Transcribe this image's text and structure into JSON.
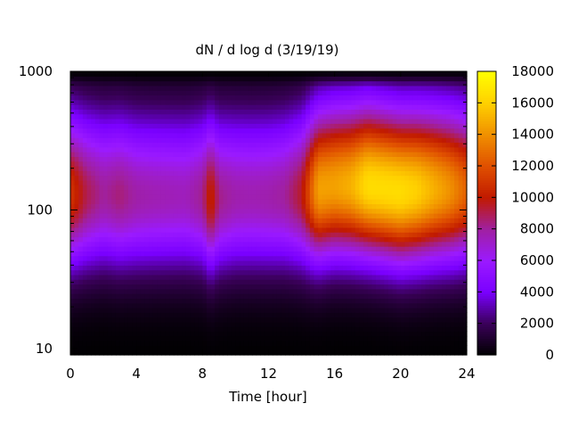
{
  "chart_data": {
    "type": "heatmap",
    "title": "dN / d log d (3/19/19)",
    "xlabel": "Time [hour]",
    "ylabel": "",
    "x_range": [
      0,
      24
    ],
    "y_range": [
      9,
      1000
    ],
    "y_scale": "log",
    "x_ticks": [
      0,
      4,
      8,
      12,
      16,
      20,
      24
    ],
    "x_tick_labels": [
      "0",
      "4",
      "8",
      "12",
      "16",
      "20",
      "24"
    ],
    "y_ticks": [
      10,
      100,
      1000
    ],
    "y_tick_labels": [
      "10",
      "100",
      "1000"
    ],
    "colorbar": {
      "min": 0,
      "max": 18000,
      "ticks": [
        0,
        2000,
        4000,
        6000,
        8000,
        10000,
        12000,
        14000,
        16000,
        18000
      ],
      "tick_labels": [
        "0",
        "2000",
        "4000",
        "6000",
        "8000",
        "10000",
        "12000",
        "14000",
        "16000",
        "18000"
      ],
      "palette": [
        "#000000",
        "#3a0059",
        "#7a00ff",
        "#9b1aff",
        "#a020a0",
        "#c11a00",
        "#e05000",
        "#f09000",
        "#ffd000",
        "#ffff00"
      ]
    },
    "mode_diameter_by_hour": [
      [
        0,
        130
      ],
      [
        2,
        130
      ],
      [
        4,
        125
      ],
      [
        6,
        125
      ],
      [
        8,
        125
      ],
      [
        8.5,
        120
      ],
      [
        10,
        125
      ],
      [
        12,
        125
      ],
      [
        14,
        130
      ],
      [
        15,
        140
      ],
      [
        16,
        150
      ],
      [
        18,
        150
      ],
      [
        20,
        135
      ],
      [
        22,
        140
      ],
      [
        24,
        140
      ]
    ],
    "peak_value_by_hour": [
      [
        0,
        11000
      ],
      [
        1,
        9000
      ],
      [
        2,
        8000
      ],
      [
        3,
        8500
      ],
      [
        4,
        7800
      ],
      [
        5,
        7600
      ],
      [
        6,
        7500
      ],
      [
        7,
        7400
      ],
      [
        8,
        8200
      ],
      [
        8.5,
        10500
      ],
      [
        9,
        8300
      ],
      [
        10,
        7700
      ],
      [
        11,
        7600
      ],
      [
        12,
        7700
      ],
      [
        13,
        8000
      ],
      [
        14,
        9500
      ],
      [
        15,
        14500
      ],
      [
        16,
        14500
      ],
      [
        17,
        15000
      ],
      [
        18,
        16500
      ],
      [
        19,
        16500
      ],
      [
        20,
        16500
      ],
      [
        21,
        16000
      ],
      [
        22,
        15000
      ],
      [
        23,
        14000
      ],
      [
        24,
        12500
      ]
    ],
    "grid": false,
    "legend": "colorbar-right"
  }
}
